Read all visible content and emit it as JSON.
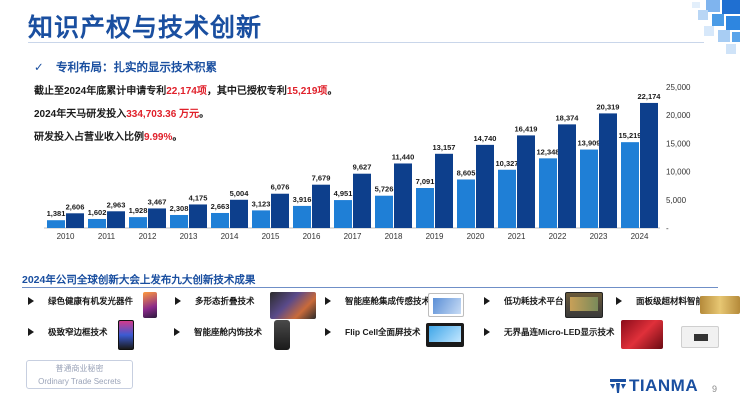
{
  "title": "知识产权与技术创新",
  "subtitle": "专利布局：扎实的显示技术积累",
  "stats": [
    {
      "before": "截止至2024年底累计申请专利",
      "hl": "22,174项",
      "after": "，其中已授权专利",
      "hl2": "15,219项",
      "after2": "。"
    },
    {
      "before": "2024年天马研发投入",
      "hl": "334,703.36 万元",
      "after": "。",
      "hl2": "",
      "after2": ""
    },
    {
      "before": "研发投入占营业收入比例",
      "hl": "9.99%",
      "after": "。",
      "hl2": "",
      "after2": ""
    }
  ],
  "chart_data": {
    "type": "bar",
    "categories": [
      "2010",
      "2011",
      "2012",
      "2013",
      "2014",
      "2015",
      "2016",
      "2017",
      "2018",
      "2019",
      "2020",
      "2021",
      "2022",
      "2023",
      "2024"
    ],
    "series": [
      {
        "name": "",
        "color": "#1f7fd6",
        "values": [
          1381,
          1602,
          1928,
          2308,
          2663,
          3123,
          3916,
          4951,
          5726,
          7091,
          8605,
          10327,
          12348,
          13909,
          15219
        ],
        "labels": [
          "1,381",
          "1,602",
          "1,928",
          "2,308",
          "2,663",
          "3,123",
          "3,916",
          "4,951",
          "5,726",
          "7,091",
          "8,605",
          "10,327",
          "12,348",
          "13,909",
          "15,219"
        ]
      },
      {
        "name": "",
        "color": "#0d3f8c",
        "values": [
          2606,
          2963,
          3467,
          4175,
          5004,
          6076,
          7679,
          9627,
          11440,
          13157,
          14740,
          16419,
          18374,
          20319,
          22174
        ],
        "labels": [
          "2,606",
          "2,963",
          "3,467",
          "4,175",
          "5,004",
          "6,076",
          "7,679",
          "9,627",
          "11,440",
          "13,157",
          "14,740",
          "16,419",
          "18,374",
          "20,319",
          "22,174"
        ]
      }
    ],
    "yticks": [
      "-",
      "5,000",
      "10,000",
      "15,000",
      "20,000",
      "25,000"
    ],
    "ylim": [
      0,
      25000
    ],
    "legend": "none",
    "grid": false
  },
  "innovation": {
    "heading": "2024年公司全球创新大会上发布九大创新技术成果",
    "items": [
      {
        "label": "绿色健康有机发光器件"
      },
      {
        "label": "多形态折叠技术"
      },
      {
        "label": "智能座舱集成传感技术"
      },
      {
        "label": "低功耗技术平台"
      },
      {
        "label": "面板级超材料智能天线技术"
      },
      {
        "label": "极致窄边框技术"
      },
      {
        "label": "智能座舱内饰技术"
      },
      {
        "label": "Flip Cell全面屏技术"
      },
      {
        "label": "无界晶连Micro-LED显示技术"
      }
    ]
  },
  "watermark": {
    "line1": "普通商业秘密",
    "line2": "Ordinary Trade Secrets"
  },
  "logo": {
    "text": "TIANMA"
  },
  "page_number": "9"
}
